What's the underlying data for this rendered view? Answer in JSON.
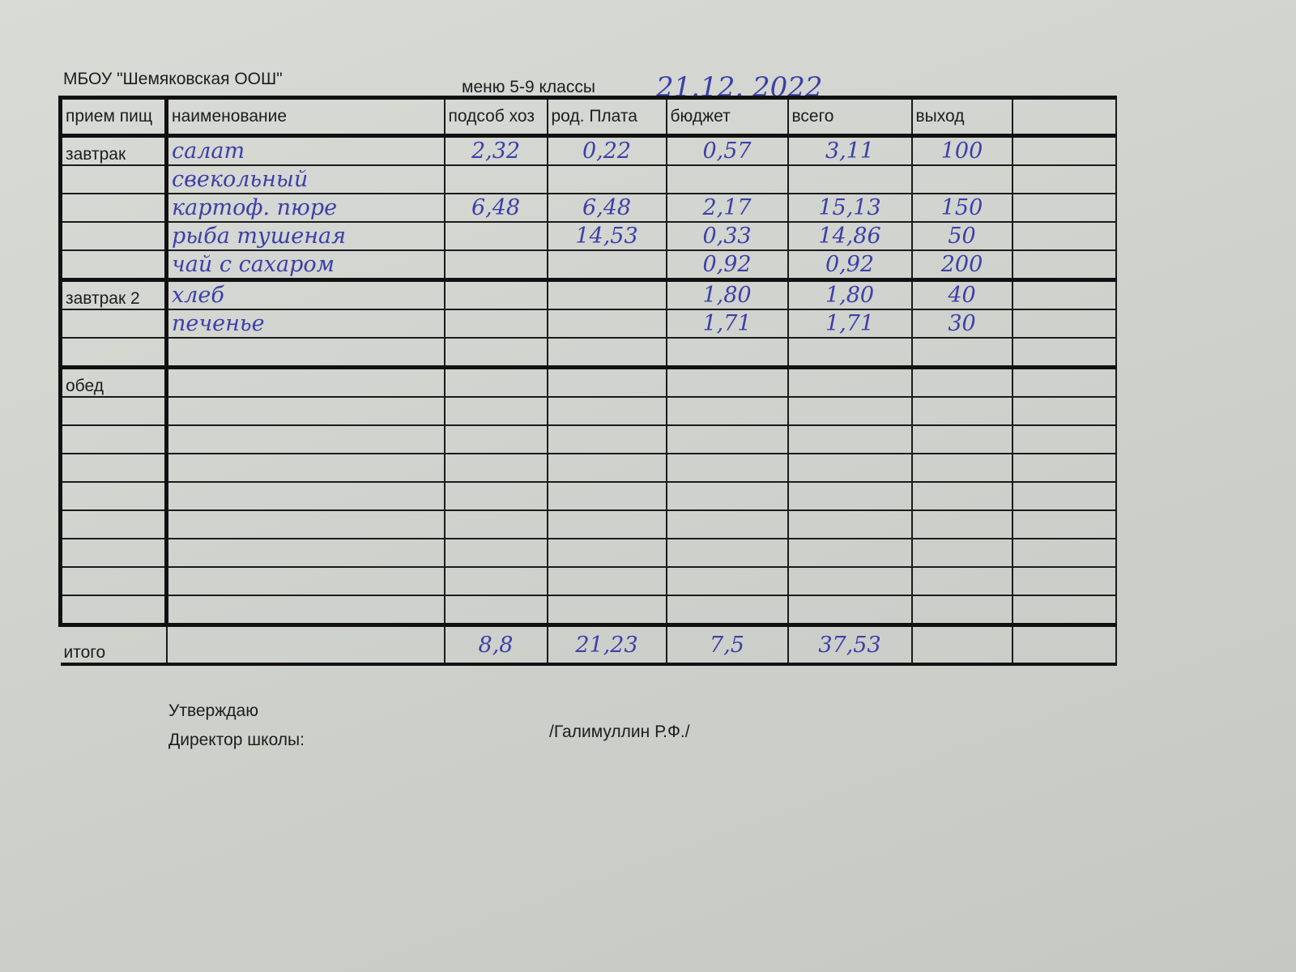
{
  "header": {
    "school": "МБОУ \"Шемяковская ООШ\"",
    "menu_title": "меню 5-9 классы",
    "date": "21.12. 2022"
  },
  "table": {
    "columns": [
      "прием пищ",
      "наименование",
      "подсоб хоз",
      "род. Плата",
      "бюджет",
      "всего",
      "выход",
      ""
    ],
    "rows": [
      {
        "meal": "завтрак",
        "name": "салат",
        "podsob": "2,32",
        "rod": "0,22",
        "budget": "0,57",
        "total": "3,11",
        "output": "100"
      },
      {
        "meal": "",
        "name": "свекольный",
        "podsob": "",
        "rod": "",
        "budget": "",
        "total": "",
        "output": ""
      },
      {
        "meal": "",
        "name": "картоф. пюре",
        "podsob": "6,48",
        "rod": "6,48",
        "budget": "2,17",
        "total": "15,13",
        "output": "150"
      },
      {
        "meal": "",
        "name": "рыба тушеная",
        "podsob": "",
        "rod": "14,53",
        "budget": "0,33",
        "total": "14,86",
        "output": "50"
      },
      {
        "meal": "",
        "name": "чай с сахаром",
        "podsob": "",
        "rod": "",
        "budget": "0,92",
        "total": "0,92",
        "output": "200"
      },
      {
        "meal": "завтрак 2",
        "name": "хлеб",
        "podsob": "",
        "rod": "",
        "budget": "1,80",
        "total": "1,80",
        "output": "40"
      },
      {
        "meal": "",
        "name": "печенье",
        "podsob": "",
        "rod": "",
        "budget": "1,71",
        "total": "1,71",
        "output": "30"
      },
      {
        "meal": "",
        "name": "",
        "podsob": "",
        "rod": "",
        "budget": "",
        "total": "",
        "output": ""
      },
      {
        "meal": "обед",
        "name": "",
        "podsob": "",
        "rod": "",
        "budget": "",
        "total": "",
        "output": ""
      },
      {
        "meal": "",
        "name": "",
        "podsob": "",
        "rod": "",
        "budget": "",
        "total": "",
        "output": ""
      },
      {
        "meal": "",
        "name": "",
        "podsob": "",
        "rod": "",
        "budget": "",
        "total": "",
        "output": ""
      },
      {
        "meal": "",
        "name": "",
        "podsob": "",
        "rod": "",
        "budget": "",
        "total": "",
        "output": ""
      },
      {
        "meal": "",
        "name": "",
        "podsob": "",
        "rod": "",
        "budget": "",
        "total": "",
        "output": ""
      },
      {
        "meal": "",
        "name": "",
        "podsob": "",
        "rod": "",
        "budget": "",
        "total": "",
        "output": ""
      },
      {
        "meal": "",
        "name": "",
        "podsob": "",
        "rod": "",
        "budget": "",
        "total": "",
        "output": ""
      },
      {
        "meal": "",
        "name": "",
        "podsob": "",
        "rod": "",
        "budget": "",
        "total": "",
        "output": ""
      },
      {
        "meal": "",
        "name": "",
        "podsob": "",
        "rod": "",
        "budget": "",
        "total": "",
        "output": ""
      }
    ],
    "totals": {
      "label": "итого",
      "podsob": "8,8",
      "rod": "21,23",
      "budget": "7,5",
      "total": "37,53"
    }
  },
  "footer": {
    "approve": "Утверждаю",
    "director": "Директор школы:",
    "signature_name": "/Галимуллин Р.Ф./"
  },
  "colors": {
    "ink": "#3d3fa8",
    "paper": "#d4d6d1"
  }
}
